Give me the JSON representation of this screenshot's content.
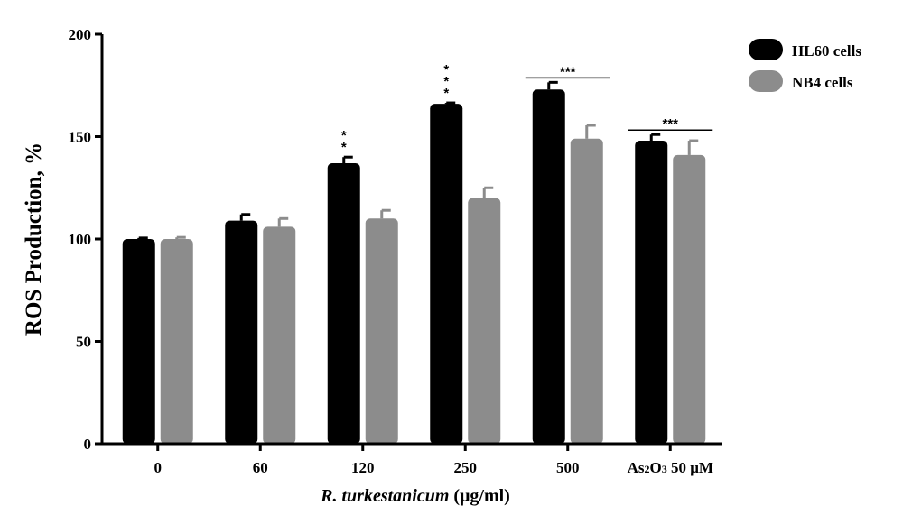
{
  "chart_data": {
    "type": "bar",
    "categories": [
      "0",
      "60",
      "120",
      "250",
      "500",
      "As2O3 50 μM"
    ],
    "category_display": [
      {
        "parts": [
          {
            "text": "0"
          }
        ]
      },
      {
        "parts": [
          {
            "text": "60"
          }
        ]
      },
      {
        "parts": [
          {
            "text": "120"
          }
        ]
      },
      {
        "parts": [
          {
            "text": "250"
          }
        ]
      },
      {
        "parts": [
          {
            "text": "500"
          }
        ]
      },
      {
        "parts": [
          {
            "text": "As"
          },
          {
            "text": "2",
            "sub": true
          },
          {
            "text": "O"
          },
          {
            "text": "3",
            "sub": true
          },
          {
            "text": " 50 μM"
          }
        ]
      }
    ],
    "series": [
      {
        "name": "HL60 cells",
        "color": "#000000",
        "values": [
          100,
          109,
          137,
          166,
          173,
          148
        ],
        "errors": [
          0.5,
          3,
          3,
          0.5,
          3.5,
          3
        ]
      },
      {
        "name": "NB4 cells",
        "color": "#8c8c8c",
        "values": [
          100,
          106,
          110,
          120,
          149,
          141
        ],
        "errors": [
          0.8,
          4,
          4,
          5,
          6.5,
          7
        ]
      }
    ],
    "ylabel": "ROS Production, %",
    "xlabel": {
      "italic": "R. turkestanicum",
      "rest": " (μg/ml)"
    },
    "ylim": [
      0,
      200
    ],
    "yticks": [
      0,
      50,
      100,
      150,
      200
    ],
    "grid": false,
    "legend_position": "top-right",
    "significance": [
      {
        "category_index": 2,
        "series_index": 0,
        "text": "**",
        "orientation": "vertical"
      },
      {
        "category_index": 3,
        "series_index": 0,
        "text": "***",
        "orientation": "vertical"
      },
      {
        "category_index": 4,
        "text": "***",
        "orientation": "bracket"
      },
      {
        "category_index": 5,
        "text": "***",
        "orientation": "bracket"
      }
    ]
  }
}
